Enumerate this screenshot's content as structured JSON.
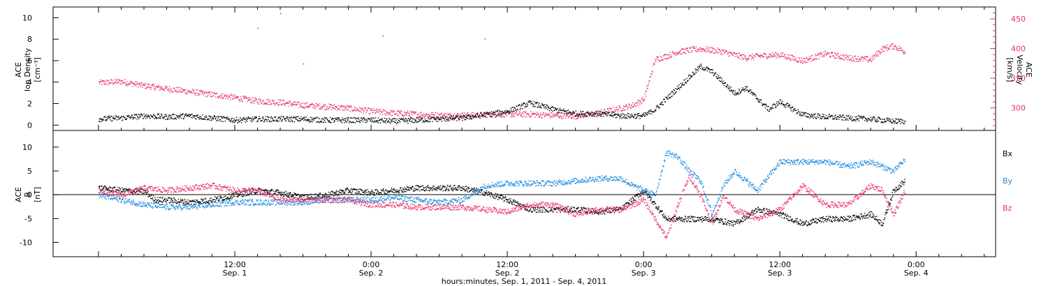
{
  "chart_data": [
    {
      "type": "scatter",
      "panel": "top",
      "ylabel_lines": [
        "ACE",
        "Ion Density"
      ],
      "ylabel_unit": "[cm⁻³]",
      "ylim": [
        -0.5,
        11
      ],
      "yticks": [
        0,
        2,
        4,
        6,
        8,
        10
      ],
      "y2label_lines": [
        "ACE",
        "Velocity"
      ],
      "y2label_unit": "[km/s]",
      "y2lim": [
        262,
        470
      ],
      "y2ticks": [
        300,
        350,
        400,
        450
      ],
      "colors": {
        "density": "#000000",
        "velocity": "#e8336b"
      },
      "series": [
        {
          "axis": "left",
          "values_desc": "Ion density",
          "x_hours": [
            0,
            2,
            4,
            6,
            8,
            10,
            12,
            14,
            16,
            18,
            20,
            22,
            24,
            26,
            28,
            30,
            32,
            34,
            36,
            38,
            40,
            42,
            44,
            46,
            48,
            49,
            50,
            51,
            52,
            53,
            54,
            55,
            56,
            57,
            58,
            59,
            60,
            62,
            64,
            66,
            68,
            70,
            71
          ],
          "y": [
            0.6,
            0.7,
            0.9,
            0.8,
            0.9,
            0.7,
            0.5,
            0.6,
            0.6,
            0.6,
            0.5,
            0.5,
            0.5,
            0.4,
            0.5,
            0.6,
            0.7,
            1.0,
            1.3,
            2.1,
            1.5,
            1.1,
            1.1,
            0.9,
            0.9,
            1.5,
            2.5,
            3.5,
            4.5,
            5.5,
            5.0,
            4.0,
            3.0,
            3.5,
            2.5,
            1.5,
            2.2,
            1.0,
            0.8,
            0.7,
            0.6,
            0.4,
            0.4
          ]
        },
        {
          "axis": "right",
          "values_desc": "Velocity",
          "x_hours": [
            0,
            2,
            4,
            6,
            8,
            10,
            12,
            14,
            16,
            18,
            20,
            22,
            24,
            26,
            28,
            30,
            32,
            34,
            36,
            38,
            40,
            42,
            44,
            46,
            47,
            48,
            49,
            50,
            51,
            52,
            53,
            54,
            55,
            56,
            57,
            58,
            60,
            62,
            64,
            66,
            68,
            69,
            70,
            71
          ],
          "y": [
            343,
            345,
            338,
            333,
            328,
            323,
            318,
            312,
            310,
            305,
            303,
            300,
            295,
            292,
            290,
            288,
            288,
            289,
            290,
            290,
            288,
            287,
            292,
            300,
            305,
            315,
            382,
            388,
            395,
            398,
            400,
            398,
            395,
            390,
            385,
            388,
            390,
            380,
            392,
            385,
            382,
            400,
            405,
            395
          ]
        }
      ],
      "outliers_velocity": [
        [
          14,
          435
        ],
        [
          16,
          460
        ],
        [
          22,
          473
        ],
        [
          25,
          422
        ],
        [
          34,
          417
        ],
        [
          18,
          375
        ]
      ]
    },
    {
      "type": "scatter",
      "panel": "bottom",
      "ylabel_lines": [
        "ACE",
        "B"
      ],
      "ylabel_unit": "[nT]",
      "ylim": [
        -13,
        13.5
      ],
      "yticks": [
        -10,
        -5,
        0,
        5,
        10
      ],
      "zero_line": true,
      "series": [
        {
          "name": "Bx",
          "color": "#000000",
          "x_hours": [
            0,
            2,
            4,
            5,
            6,
            8,
            10,
            12,
            14,
            16,
            18,
            20,
            22,
            24,
            26,
            28,
            30,
            32,
            34,
            36,
            38,
            40,
            42,
            44,
            46,
            47,
            48,
            49,
            50,
            52,
            54,
            56,
            58,
            60,
            62,
            64,
            66,
            68,
            69,
            70,
            71
          ],
          "y": [
            1.5,
            1.0,
            0.8,
            -1,
            -1,
            -1.5,
            -1,
            0,
            1,
            0.5,
            -0.5,
            0,
            1,
            0.5,
            1,
            1.5,
            1.5,
            1.5,
            0.5,
            -1,
            -3,
            -3,
            -3,
            -3.5,
            -3,
            -1,
            1,
            -2,
            -5,
            -5,
            -5,
            -6,
            -3,
            -4,
            -6,
            -5,
            -5,
            -4,
            -6,
            1,
            3
          ]
        },
        {
          "name": "By",
          "color": "#1f8be0",
          "x_hours": [
            0,
            2,
            4,
            6,
            8,
            10,
            12,
            14,
            16,
            18,
            20,
            22,
            24,
            26,
            28,
            30,
            32,
            34,
            36,
            38,
            40,
            42,
            44,
            46,
            47,
            48,
            49,
            50,
            51,
            52,
            53,
            54,
            55,
            56,
            58,
            60,
            62,
            64,
            66,
            68,
            70,
            71
          ],
          "y": [
            0,
            -1,
            -2,
            -2.5,
            -2.5,
            -2,
            -1.5,
            -1.5,
            -1.5,
            -1.5,
            -1,
            -1,
            -1,
            -0.5,
            -1,
            -1.5,
            -1,
            2,
            2.5,
            2.5,
            2.5,
            3,
            3.5,
            3.5,
            2,
            1,
            0,
            9,
            8,
            5,
            3,
            -4,
            2,
            5,
            1,
            7,
            7,
            7,
            6,
            7,
            5,
            7.5
          ]
        },
        {
          "name": "Bz",
          "color": "#e8336b",
          "x_hours": [
            0,
            2,
            4,
            6,
            8,
            10,
            12,
            14,
            16,
            18,
            20,
            22,
            24,
            26,
            28,
            30,
            32,
            34,
            36,
            38,
            40,
            42,
            44,
            46,
            47,
            48,
            49,
            50,
            51,
            52,
            53,
            54,
            55,
            56,
            58,
            60,
            62,
            64,
            66,
            68,
            69,
            70,
            71
          ],
          "y": [
            1,
            0,
            1.5,
            1,
            1.5,
            2,
            1,
            1,
            -1,
            -1,
            -1,
            -1,
            -2,
            -2,
            -2.5,
            -2.5,
            -2.5,
            -3,
            -3.5,
            -2,
            -2,
            -4,
            -3,
            -3,
            -2,
            -1,
            -5,
            -9,
            -2,
            4,
            0,
            -6,
            0,
            -3,
            -5,
            -3,
            2,
            -2,
            -2,
            2,
            1,
            -4,
            1
          ]
        }
      ],
      "legend_placement": "right"
    }
  ],
  "x_axis": {
    "range_hours": [
      -4,
      79
    ],
    "tick_labels": [
      {
        "hour": 12,
        "time": "12:00",
        "date": "Sep. 1"
      },
      {
        "hour": 24,
        "time": "0:00",
        "date": "Sep. 2"
      },
      {
        "hour": 36,
        "time": "12:00",
        "date": "Sep. 2"
      },
      {
        "hour": 48,
        "time": "0:00",
        "date": "Sep. 3"
      },
      {
        "hour": 60,
        "time": "12:00",
        "date": "Sep. 3"
      },
      {
        "hour": 72,
        "time": "0:00",
        "date": "Sep. 4"
      }
    ],
    "xlabel": "hours:minutes, Sep.  1, 2011 - Sep.  4, 2011"
  }
}
